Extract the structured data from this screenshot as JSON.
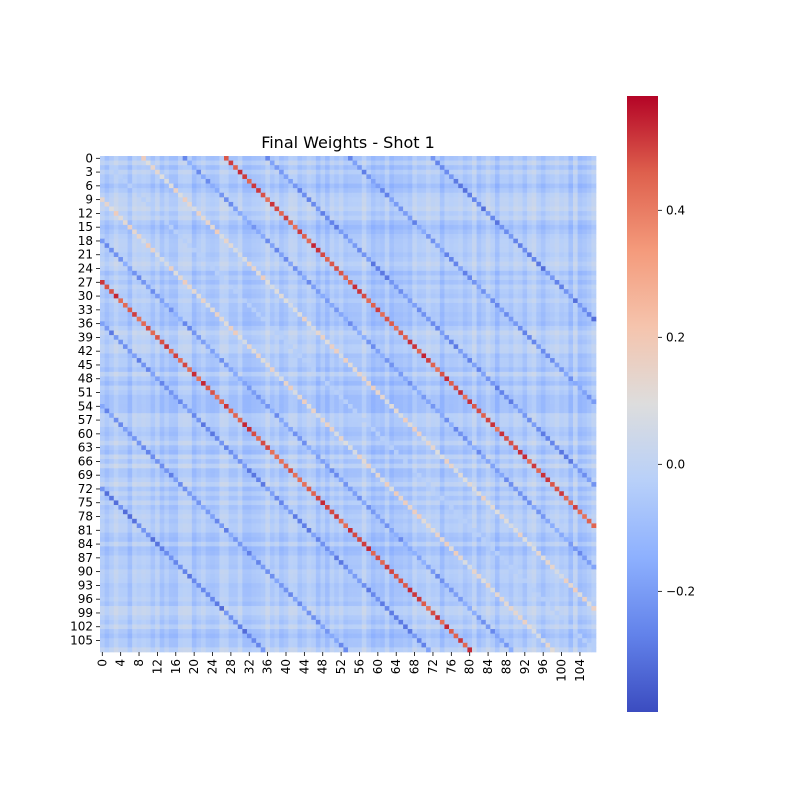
{
  "chart_data": {
    "type": "heatmap",
    "title": "Final Weights - Shot 1",
    "xlabel": "",
    "ylabel": "",
    "n_rows": 108,
    "n_cols": 108,
    "colormap": "coolwarm",
    "vmin": -0.39,
    "vmax": 0.58,
    "x_tick_labels": [
      "0",
      "4",
      "8",
      "12",
      "16",
      "20",
      "24",
      "28",
      "32",
      "36",
      "40",
      "44",
      "48",
      "52",
      "56",
      "60",
      "64",
      "68",
      "72",
      "76",
      "80",
      "84",
      "88",
      "92",
      "96",
      "100",
      "104"
    ],
    "y_tick_labels": [
      "0",
      "3",
      "6",
      "9",
      "12",
      "15",
      "18",
      "21",
      "24",
      "27",
      "30",
      "33",
      "36",
      "39",
      "42",
      "45",
      "48",
      "51",
      "54",
      "57",
      "60",
      "63",
      "66",
      "69",
      "72",
      "75",
      "78",
      "81",
      "84",
      "87",
      "90",
      "93",
      "96",
      "99",
      "102",
      "105"
    ],
    "colorbar_ticks": [
      -0.2,
      0.0,
      0.2,
      0.4
    ],
    "colorbar_tick_labels": [
      "−0.2",
      "0.0",
      "0.2",
      "0.4"
    ],
    "background_value": -0.05,
    "diagonal_bands": [
      {
        "offset": 27,
        "value": 0.48
      },
      {
        "offset": -27,
        "value": 0.48
      },
      {
        "offset": 9,
        "value": 0.12
      },
      {
        "offset": -9,
        "value": 0.12
      },
      {
        "offset": 18,
        "value": -0.2
      },
      {
        "offset": -18,
        "value": -0.2
      },
      {
        "offset": 36,
        "value": -0.24
      },
      {
        "offset": -36,
        "value": -0.24
      },
      {
        "offset": 54,
        "value": -0.22
      },
      {
        "offset": -54,
        "value": -0.22
      },
      {
        "offset": 72,
        "value": -0.26
      },
      {
        "offset": -72,
        "value": -0.26
      }
    ],
    "grid": false,
    "legend": "colorbar-right"
  }
}
